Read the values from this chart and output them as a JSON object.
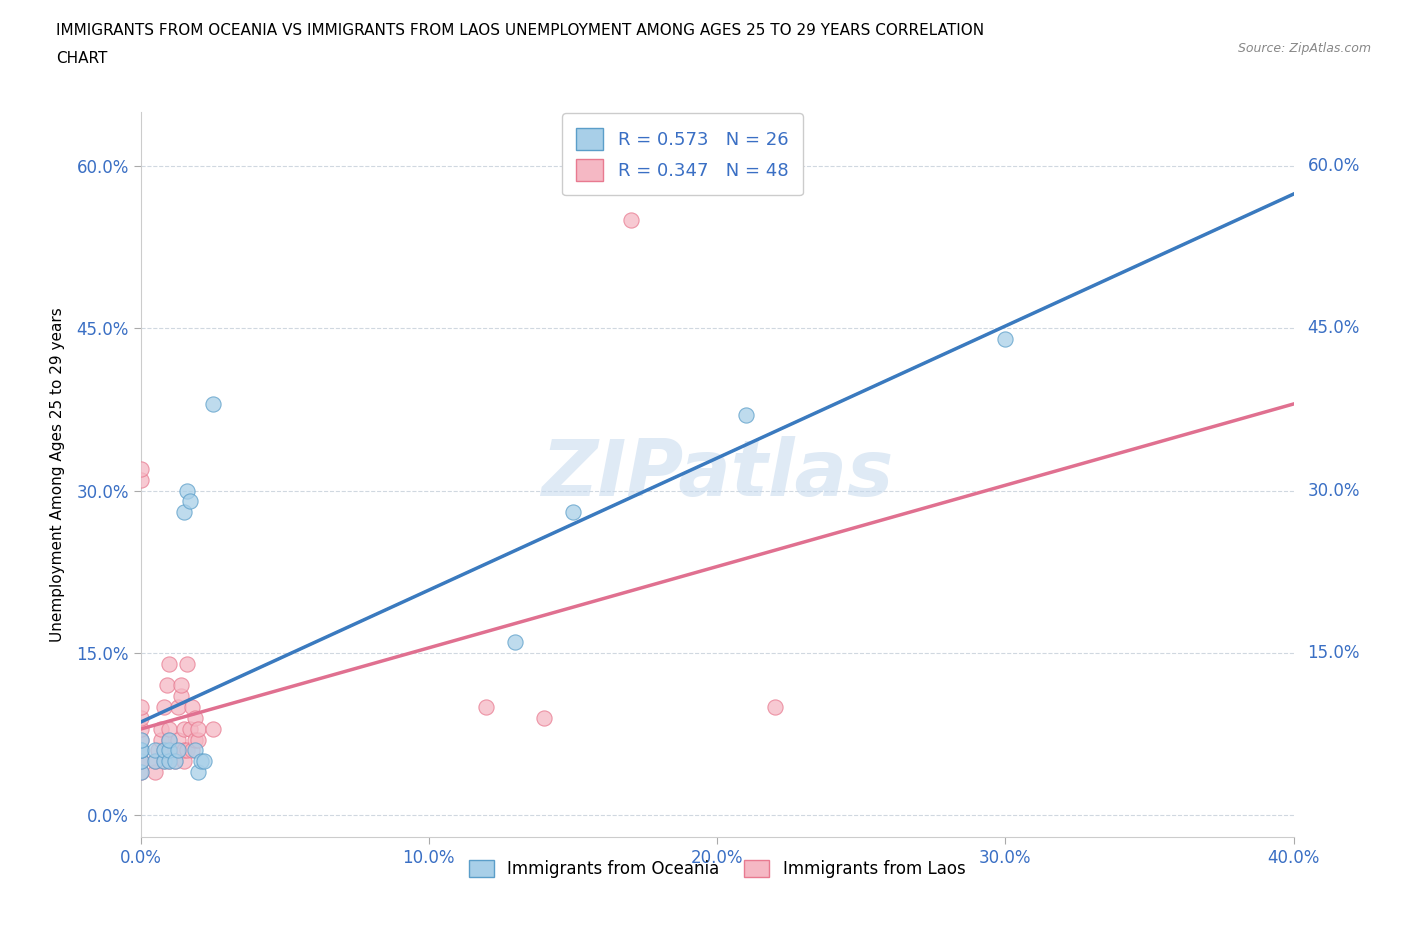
{
  "title_line1": "IMMIGRANTS FROM OCEANIA VS IMMIGRANTS FROM LAOS UNEMPLOYMENT AMONG AGES 25 TO 29 YEARS CORRELATION",
  "title_line2": "CHART",
  "source": "Source: ZipAtlas.com",
  "xlim": [
    0.0,
    0.4
  ],
  "ylim": [
    -0.02,
    0.65
  ],
  "ylabel": "Unemployment Among Ages 25 to 29 years",
  "color_oceania_fill": "#a8cfe8",
  "color_oceania_edge": "#5b9ec9",
  "color_oceania_line": "#3a7abf",
  "color_laos_fill": "#f5b8c4",
  "color_laos_edge": "#e87a90",
  "color_laos_line": "#e07090",
  "color_dash": "#d0d0d0",
  "R_oceania": 0.573,
  "N_oceania": 26,
  "R_laos": 0.347,
  "N_laos": 48,
  "watermark": "ZIPatlas",
  "oceania_x": [
    0.0,
    0.0,
    0.0,
    0.0,
    0.0,
    0.005,
    0.005,
    0.008,
    0.008,
    0.01,
    0.01,
    0.01,
    0.012,
    0.013,
    0.015,
    0.016,
    0.017,
    0.019,
    0.02,
    0.021,
    0.022,
    0.025,
    0.13,
    0.15,
    0.21,
    0.3
  ],
  "oceania_y": [
    0.04,
    0.05,
    0.06,
    0.06,
    0.07,
    0.05,
    0.06,
    0.05,
    0.06,
    0.05,
    0.06,
    0.07,
    0.05,
    0.06,
    0.28,
    0.3,
    0.29,
    0.06,
    0.04,
    0.05,
    0.05,
    0.38,
    0.16,
    0.28,
    0.37,
    0.44
  ],
  "laos_x": [
    0.0,
    0.0,
    0.0,
    0.0,
    0.0,
    0.0,
    0.0,
    0.0,
    0.0,
    0.0,
    0.0,
    0.005,
    0.005,
    0.006,
    0.007,
    0.007,
    0.008,
    0.008,
    0.008,
    0.009,
    0.01,
    0.01,
    0.01,
    0.01,
    0.01,
    0.012,
    0.012,
    0.013,
    0.013,
    0.014,
    0.014,
    0.015,
    0.015,
    0.015,
    0.016,
    0.016,
    0.017,
    0.018,
    0.018,
    0.019,
    0.019,
    0.02,
    0.02,
    0.025,
    0.12,
    0.14,
    0.17,
    0.22
  ],
  "laos_y": [
    0.04,
    0.05,
    0.05,
    0.06,
    0.06,
    0.07,
    0.08,
    0.09,
    0.1,
    0.31,
    0.32,
    0.04,
    0.05,
    0.06,
    0.07,
    0.08,
    0.05,
    0.06,
    0.1,
    0.12,
    0.05,
    0.06,
    0.07,
    0.08,
    0.14,
    0.05,
    0.06,
    0.07,
    0.1,
    0.11,
    0.12,
    0.05,
    0.06,
    0.08,
    0.14,
    0.06,
    0.08,
    0.1,
    0.06,
    0.07,
    0.09,
    0.07,
    0.08,
    0.08,
    0.1,
    0.09,
    0.55,
    0.1
  ],
  "xticks": [
    0.0,
    0.1,
    0.2,
    0.3,
    0.4
  ],
  "yticks_left": [
    0.0,
    0.15,
    0.3,
    0.45,
    0.6
  ],
  "xlabel_labels": [
    "0.0%",
    "10.0%",
    "20.0%",
    "30.0%",
    "40.0%"
  ],
  "ylabel_labels": [
    "0.0%",
    "15.0%",
    "30.0%",
    "45.0%",
    "60.0%"
  ]
}
